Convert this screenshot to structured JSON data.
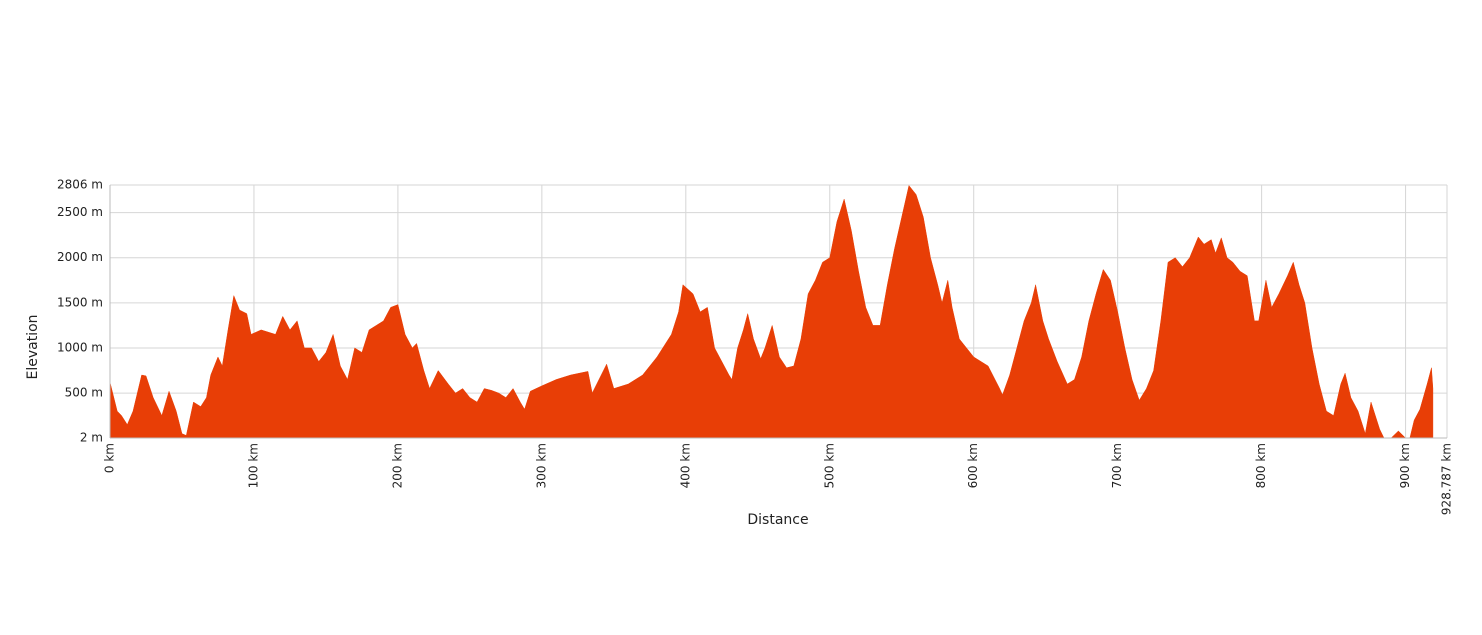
{
  "chart_data": {
    "type": "area",
    "x_label": "Distance",
    "y_label": "Elevation",
    "color": "#e83e06",
    "grid": true,
    "xlim": [
      0,
      928.787
    ],
    "ylim": [
      2,
      2806
    ],
    "xticks": [
      {
        "value": 0,
        "label": "0 km"
      },
      {
        "value": 100,
        "label": "100 km"
      },
      {
        "value": 200,
        "label": "200 km"
      },
      {
        "value": 300,
        "label": "300 km"
      },
      {
        "value": 400,
        "label": "400 km"
      },
      {
        "value": 500,
        "label": "500 km"
      },
      {
        "value": 600,
        "label": "600 km"
      },
      {
        "value": 700,
        "label": "700 km"
      },
      {
        "value": 800,
        "label": "800 km"
      },
      {
        "value": 900,
        "label": "900 km"
      },
      {
        "value": 928.787,
        "label": "928.787 km"
      }
    ],
    "yticks": [
      {
        "value": 2,
        "label": "2 m"
      },
      {
        "value": 500,
        "label": "500 m"
      },
      {
        "value": 1000,
        "label": "1000 m"
      },
      {
        "value": 1500,
        "label": "1500 m"
      },
      {
        "value": 2000,
        "label": "2000 m"
      },
      {
        "value": 2500,
        "label": "2500 m"
      },
      {
        "value": 2806,
        "label": "2806 m"
      }
    ],
    "x": [
      0,
      5,
      8,
      12,
      16,
      22,
      25,
      30,
      36,
      41,
      46,
      50,
      53,
      58,
      63,
      67,
      70,
      75,
      78,
      82,
      86,
      90,
      95,
      98,
      105,
      115,
      120,
      125,
      130,
      135,
      140,
      145,
      150,
      155,
      160,
      165,
      170,
      175,
      180,
      185,
      190,
      195,
      200,
      205,
      210,
      213,
      218,
      222,
      228,
      235,
      240,
      245,
      250,
      255,
      260,
      265,
      270,
      275,
      280,
      285,
      288,
      292,
      300,
      310,
      320,
      332,
      335,
      345,
      350,
      360,
      370,
      380,
      390,
      395,
      398,
      405,
      410,
      415,
      420,
      425,
      430,
      432,
      436,
      440,
      443,
      447,
      452,
      455,
      460,
      465,
      470,
      475,
      480,
      485,
      490,
      495,
      500,
      505,
      510,
      515,
      520,
      525,
      530,
      535,
      540,
      545,
      550,
      555,
      560,
      565,
      570,
      575,
      578,
      582,
      585,
      590,
      595,
      600,
      610,
      618,
      620,
      625,
      630,
      635,
      640,
      643,
      648,
      652,
      658,
      665,
      670,
      675,
      680,
      685,
      690,
      695,
      700,
      705,
      710,
      715,
      720,
      725,
      730,
      735,
      740,
      745,
      750,
      756,
      760,
      765,
      768,
      772,
      776,
      780,
      785,
      790,
      795,
      798,
      803,
      807,
      812,
      818,
      822,
      826,
      830,
      835,
      840,
      845,
      850,
      855,
      858,
      862,
      867,
      872,
      876,
      882,
      885,
      890,
      895,
      900,
      903,
      906,
      910,
      915,
      918,
      919
    ],
    "values": [
      620,
      300,
      250,
      150,
      300,
      700,
      690,
      450,
      250,
      520,
      300,
      50,
      30,
      400,
      350,
      450,
      700,
      900,
      800,
      1200,
      1580,
      1420,
      1380,
      1150,
      1200,
      1150,
      1350,
      1200,
      1300,
      1000,
      1000,
      850,
      950,
      1150,
      800,
      650,
      1000,
      950,
      1200,
      1250,
      1300,
      1450,
      1480,
      1150,
      1000,
      1050,
      750,
      550,
      750,
      600,
      500,
      550,
      450,
      400,
      550,
      530,
      500,
      450,
      550,
      400,
      320,
      520,
      580,
      650,
      700,
      740,
      500,
      820,
      550,
      600,
      700,
      900,
      1150,
      1400,
      1700,
      1600,
      1400,
      1450,
      1000,
      850,
      700,
      650,
      1000,
      1200,
      1380,
      1100,
      880,
      1000,
      1250,
      900,
      780,
      800,
      1100,
      1600,
      1750,
      1950,
      2000,
      2400,
      2650,
      2300,
      1850,
      1450,
      1250,
      1250,
      1700,
      2100,
      2450,
      2800,
      2700,
      2450,
      2000,
      1700,
      1500,
      1750,
      1450,
      1100,
      1000,
      900,
      800,
      550,
      480,
      700,
      1000,
      1300,
      1500,
      1700,
      1300,
      1100,
      850,
      600,
      650,
      900,
      1300,
      1600,
      1870,
      1750,
      1400,
      1000,
      650,
      420,
      550,
      750,
      1300,
      1950,
      2000,
      1900,
      2000,
      2230,
      2150,
      2200,
      2050,
      2220,
      2000,
      1950,
      1850,
      1800,
      1300,
      1300,
      1750,
      1450,
      1600,
      1800,
      1950,
      1700,
      1500,
      1000,
      600,
      300,
      250,
      600,
      720,
      450,
      300,
      50,
      400,
      100,
      2,
      2,
      80,
      2,
      2,
      200,
      320,
      600,
      780,
      550
    ]
  }
}
